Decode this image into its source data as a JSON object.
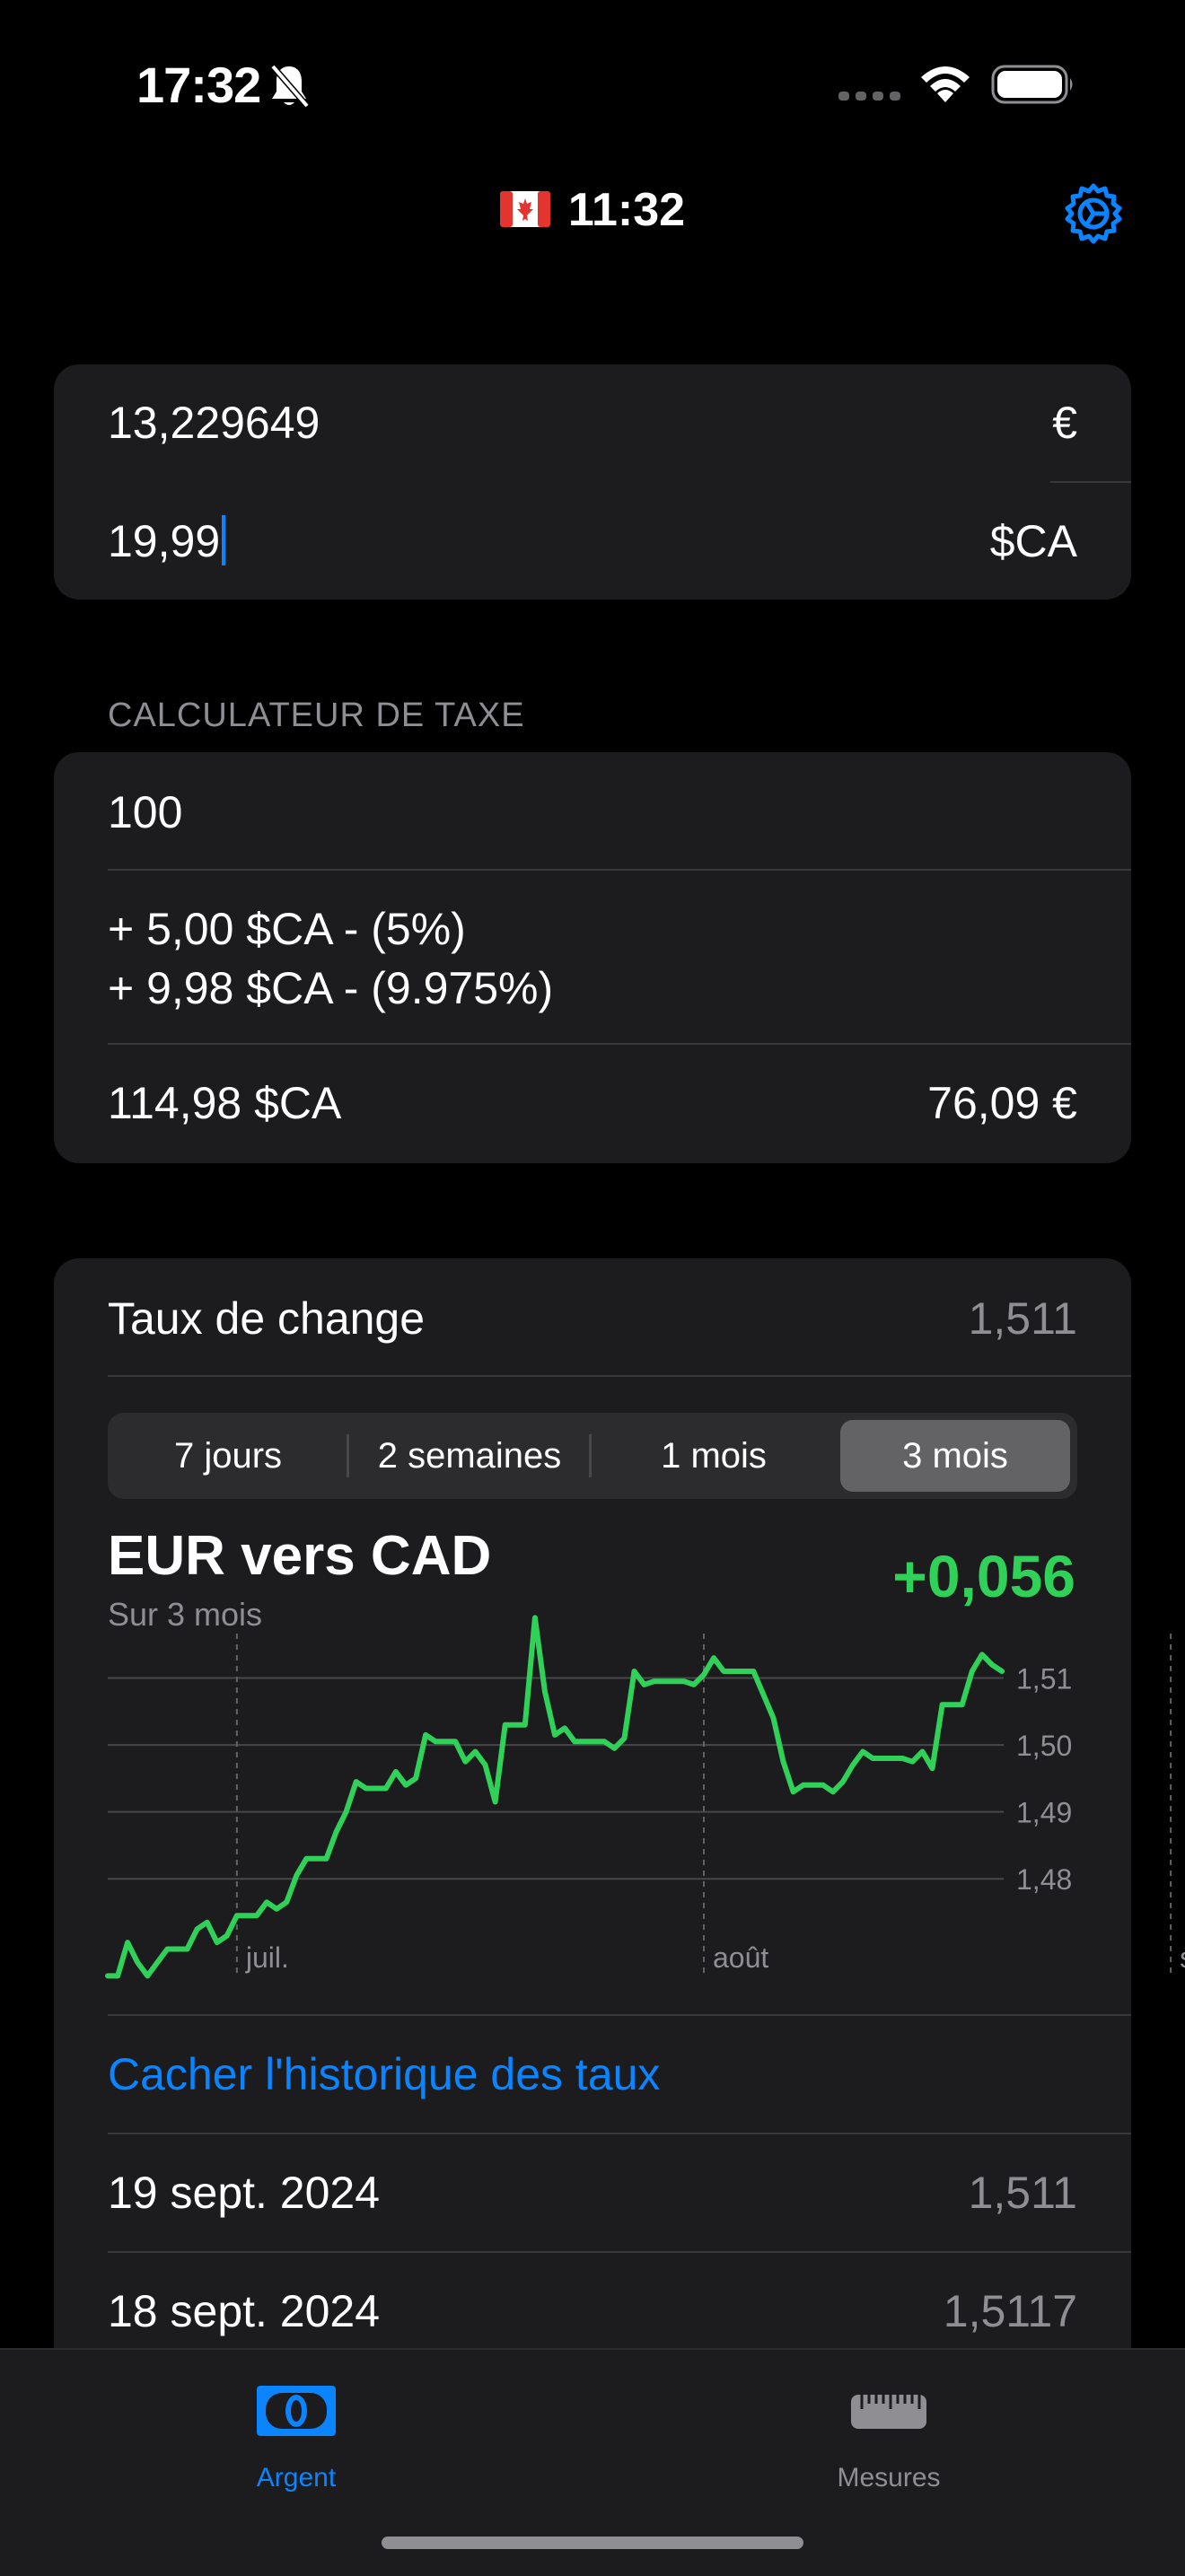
{
  "status_bar": {
    "time": "17:32",
    "icons": [
      "bell-slash-icon",
      "cellular-dots-icon",
      "wifi-icon",
      "battery-icon"
    ]
  },
  "header": {
    "flag": "canada-flag-icon",
    "time": "11:32",
    "settings_icon": "gear-icon"
  },
  "converter": {
    "eur_value": "13,229649",
    "eur_symbol": "€",
    "cad_value": "19,99",
    "cad_symbol": "$CA"
  },
  "tax_calculator": {
    "section_title": "CALCULATEUR DE TAXE",
    "amount": "100",
    "tax_line_1": "+ 5,00 $CA - (5%)",
    "tax_line_2": "+ 9,98 $CA - (9.975%)",
    "total_cad": "114,98 $CA",
    "total_eur": "76,09 €"
  },
  "exchange": {
    "label": "Taux de change",
    "rate": "1,511",
    "tabs": [
      "7 jours",
      "2 semaines",
      "1 mois",
      "3 mois"
    ],
    "selected_tab": "3 mois",
    "pair_title": "EUR vers CAD",
    "period_label": "Sur 3 mois",
    "change": "+0,056",
    "toggle_history_label": "Cacher l'historique des taux",
    "history": [
      {
        "date": "19 sept. 2024",
        "rate": "1,511"
      },
      {
        "date": "18 sept. 2024",
        "rate": "1,5117"
      }
    ]
  },
  "chart_data": {
    "type": "line",
    "color": "#30d158",
    "x_tick_labels": [
      "juil.",
      "août",
      "sept."
    ],
    "y_tick_labels": [
      "1,51",
      "1,50",
      "1,49",
      "1,48"
    ],
    "y_ticks": [
      1.51,
      1.5,
      1.49,
      1.48
    ],
    "ylim": [
      1.463,
      1.522
    ],
    "x_tick_indices": [
      13,
      60,
      107
    ],
    "grid": true,
    "series": [
      {
        "values": [
          1.4655,
          1.4655,
          1.4705,
          1.4675,
          1.4655,
          1.4675,
          1.4695,
          1.4695,
          1.4695,
          1.4725,
          1.4735,
          1.4705,
          1.4715,
          1.4745,
          1.4745,
          1.4745,
          1.4765,
          1.4755,
          1.4765,
          1.4805,
          1.483,
          1.483,
          1.483,
          1.487,
          1.49,
          1.4945,
          1.4935,
          1.4935,
          1.4935,
          1.496,
          1.494,
          1.495,
          1.5015,
          1.5005,
          1.5005,
          1.5005,
          1.4975,
          1.499,
          1.497,
          1.4915,
          1.503,
          1.503,
          1.503,
          1.519,
          1.508,
          1.5015,
          1.5025,
          1.5005,
          1.5005,
          1.5005,
          1.5005,
          1.4995,
          1.501,
          1.511,
          1.509,
          1.5095,
          1.5095,
          1.5095,
          1.5095,
          1.509,
          1.5105,
          1.513,
          1.511,
          1.511,
          1.511,
          1.511,
          1.5075,
          1.504,
          1.4975,
          1.493,
          1.494,
          1.494,
          1.494,
          1.493,
          1.4945,
          1.497,
          1.499,
          1.498,
          1.498,
          1.498,
          1.498,
          1.4975,
          1.499,
          1.4965,
          1.506,
          1.506,
          1.506,
          1.511,
          1.5135,
          1.512,
          1.511
        ]
      }
    ]
  },
  "tab_bar": {
    "tabs": [
      {
        "label": "Argent",
        "icon": "banknote-icon",
        "active": true
      },
      {
        "label": "Mesures",
        "icon": "ruler-icon",
        "active": false
      }
    ],
    "accent": "#0a84ff"
  }
}
